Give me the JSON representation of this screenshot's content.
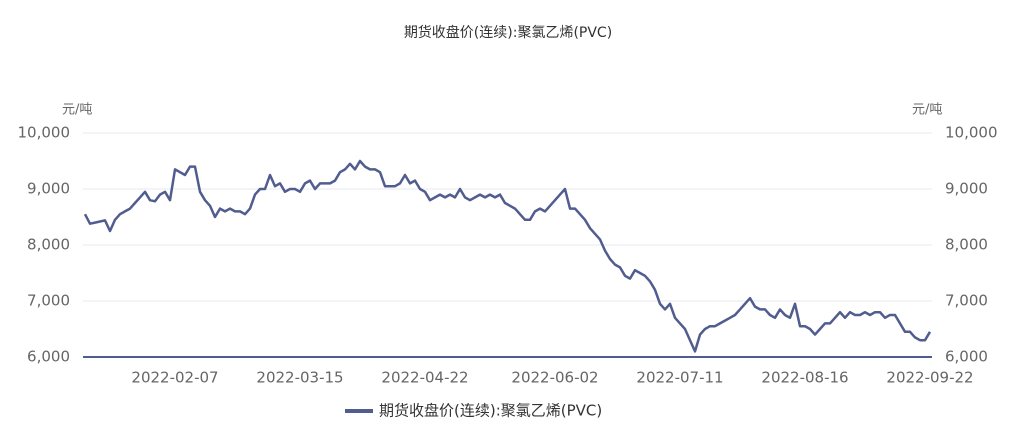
{
  "chart_data": {
    "type": "line",
    "title": "期货收盘价(连续):聚氯乙烯(PVC)",
    "ylabel": "元/吨",
    "y2label": "元/吨",
    "categories": [
      null,
      null,
      null,
      null,
      null,
      null,
      null,
      null,
      null,
      null,
      null,
      null,
      null,
      null,
      null,
      null,
      null,
      null,
      "2022-02-07",
      null,
      null,
      null,
      null,
      null,
      null,
      null,
      null,
      null,
      null,
      null,
      null,
      null,
      null,
      null,
      null,
      null,
      null,
      null,
      null,
      null,
      null,
      null,
      null,
      "2022-03-15",
      null,
      null,
      null,
      null,
      null,
      null,
      null,
      null,
      null,
      null,
      null,
      null,
      null,
      null,
      null,
      null,
      null,
      null,
      null,
      null,
      null,
      null,
      null,
      null,
      "2022-04-22",
      null,
      null,
      null,
      null,
      null,
      null,
      null,
      null,
      null,
      null,
      null,
      null,
      null,
      null,
      null,
      null,
      null,
      null,
      null,
      null,
      null,
      null,
      null,
      null,
      null,
      "2022-06-02",
      null,
      null,
      null,
      null,
      null,
      null,
      null,
      null,
      null,
      null,
      null,
      null,
      null,
      null,
      null,
      null,
      null,
      null,
      null,
      null,
      null,
      null,
      null,
      null,
      "2022-07-11",
      null,
      null,
      null,
      null,
      null,
      null,
      null,
      null,
      null,
      null,
      null,
      null,
      null,
      null,
      null,
      null,
      null,
      null,
      null,
      null,
      null,
      null,
      null,
      null,
      "2022-08-16",
      null,
      null,
      null,
      null,
      null,
      null,
      null,
      null,
      null,
      null,
      null,
      null,
      null,
      null,
      null,
      null,
      null,
      null,
      null,
      null,
      null,
      null,
      null,
      null,
      "2022-09-22"
    ],
    "series": [
      {
        "name": "期货收盘价(连续):聚氯乙烯(PVC)",
        "color": "#515c8f",
        "values": [
          8550,
          8380,
          8400,
          8420,
          8440,
          8250,
          8450,
          8550,
          8600,
          8650,
          8750,
          8850,
          8950,
          8800,
          8780,
          8900,
          8950,
          8800,
          9350,
          9300,
          9250,
          9400,
          9400,
          8950,
          8800,
          8700,
          8500,
          8650,
          8600,
          8650,
          8600,
          8600,
          8550,
          8650,
          8900,
          9000,
          9000,
          9250,
          9050,
          9100,
          8950,
          9000,
          9000,
          8950,
          9100,
          9150,
          9000,
          9100,
          9100,
          9100,
          9150,
          9300,
          9350,
          9450,
          9350,
          9500,
          9400,
          9350,
          9350,
          9300,
          9050,
          9050,
          9050,
          9100,
          9250,
          9100,
          9150,
          9000,
          8950,
          8800,
          8850,
          8900,
          8850,
          8900,
          8850,
          9000,
          8850,
          8800,
          8850,
          8900,
          8850,
          8900,
          8850,
          8900,
          8750,
          8700,
          8650,
          8550,
          8450,
          8450,
          8600,
          8650,
          8600,
          8700,
          8800,
          8900,
          9000,
          8650,
          8650,
          8550,
          8450,
          8300,
          8200,
          8100,
          7900,
          7750,
          7650,
          7600,
          7450,
          7400,
          7550,
          7500,
          7450,
          7350,
          7200,
          6950,
          6850,
          6950,
          6700,
          6600,
          6500,
          6300,
          6100,
          6400,
          6500,
          6550,
          6550,
          6600,
          6650,
          6700,
          6750,
          6850,
          6950,
          7050,
          6900,
          6850,
          6850,
          6750,
          6700,
          6850,
          6750,
          6700,
          6950,
          6550,
          6550,
          6500,
          6400,
          6500,
          6600,
          6600,
          6700,
          6800,
          6700,
          6800,
          6750,
          6750,
          6800,
          6750,
          6800,
          6800,
          6700,
          6750,
          6750,
          6600,
          6450,
          6450,
          6350,
          6300,
          6300,
          6450
        ]
      }
    ],
    "ylim": [
      6000,
      10000
    ],
    "yticks": [
      {
        "value": 6000,
        "label": "6,000"
      },
      {
        "value": 7000,
        "label": "7,000"
      },
      {
        "value": 8000,
        "label": "8,000"
      },
      {
        "value": 9000,
        "label": "9,000"
      },
      {
        "value": 10000,
        "label": "10,000"
      }
    ],
    "y2lim": [
      6000,
      10000
    ],
    "y2ticks": [
      {
        "value": 6000,
        "label": "6,000"
      },
      {
        "value": 7000,
        "label": "7,000"
      },
      {
        "value": 8000,
        "label": "8,000"
      },
      {
        "value": 9000,
        "label": "9,000"
      },
      {
        "value": 10000,
        "label": "10,000"
      }
    ],
    "grid": true,
    "legend": "bottom"
  }
}
